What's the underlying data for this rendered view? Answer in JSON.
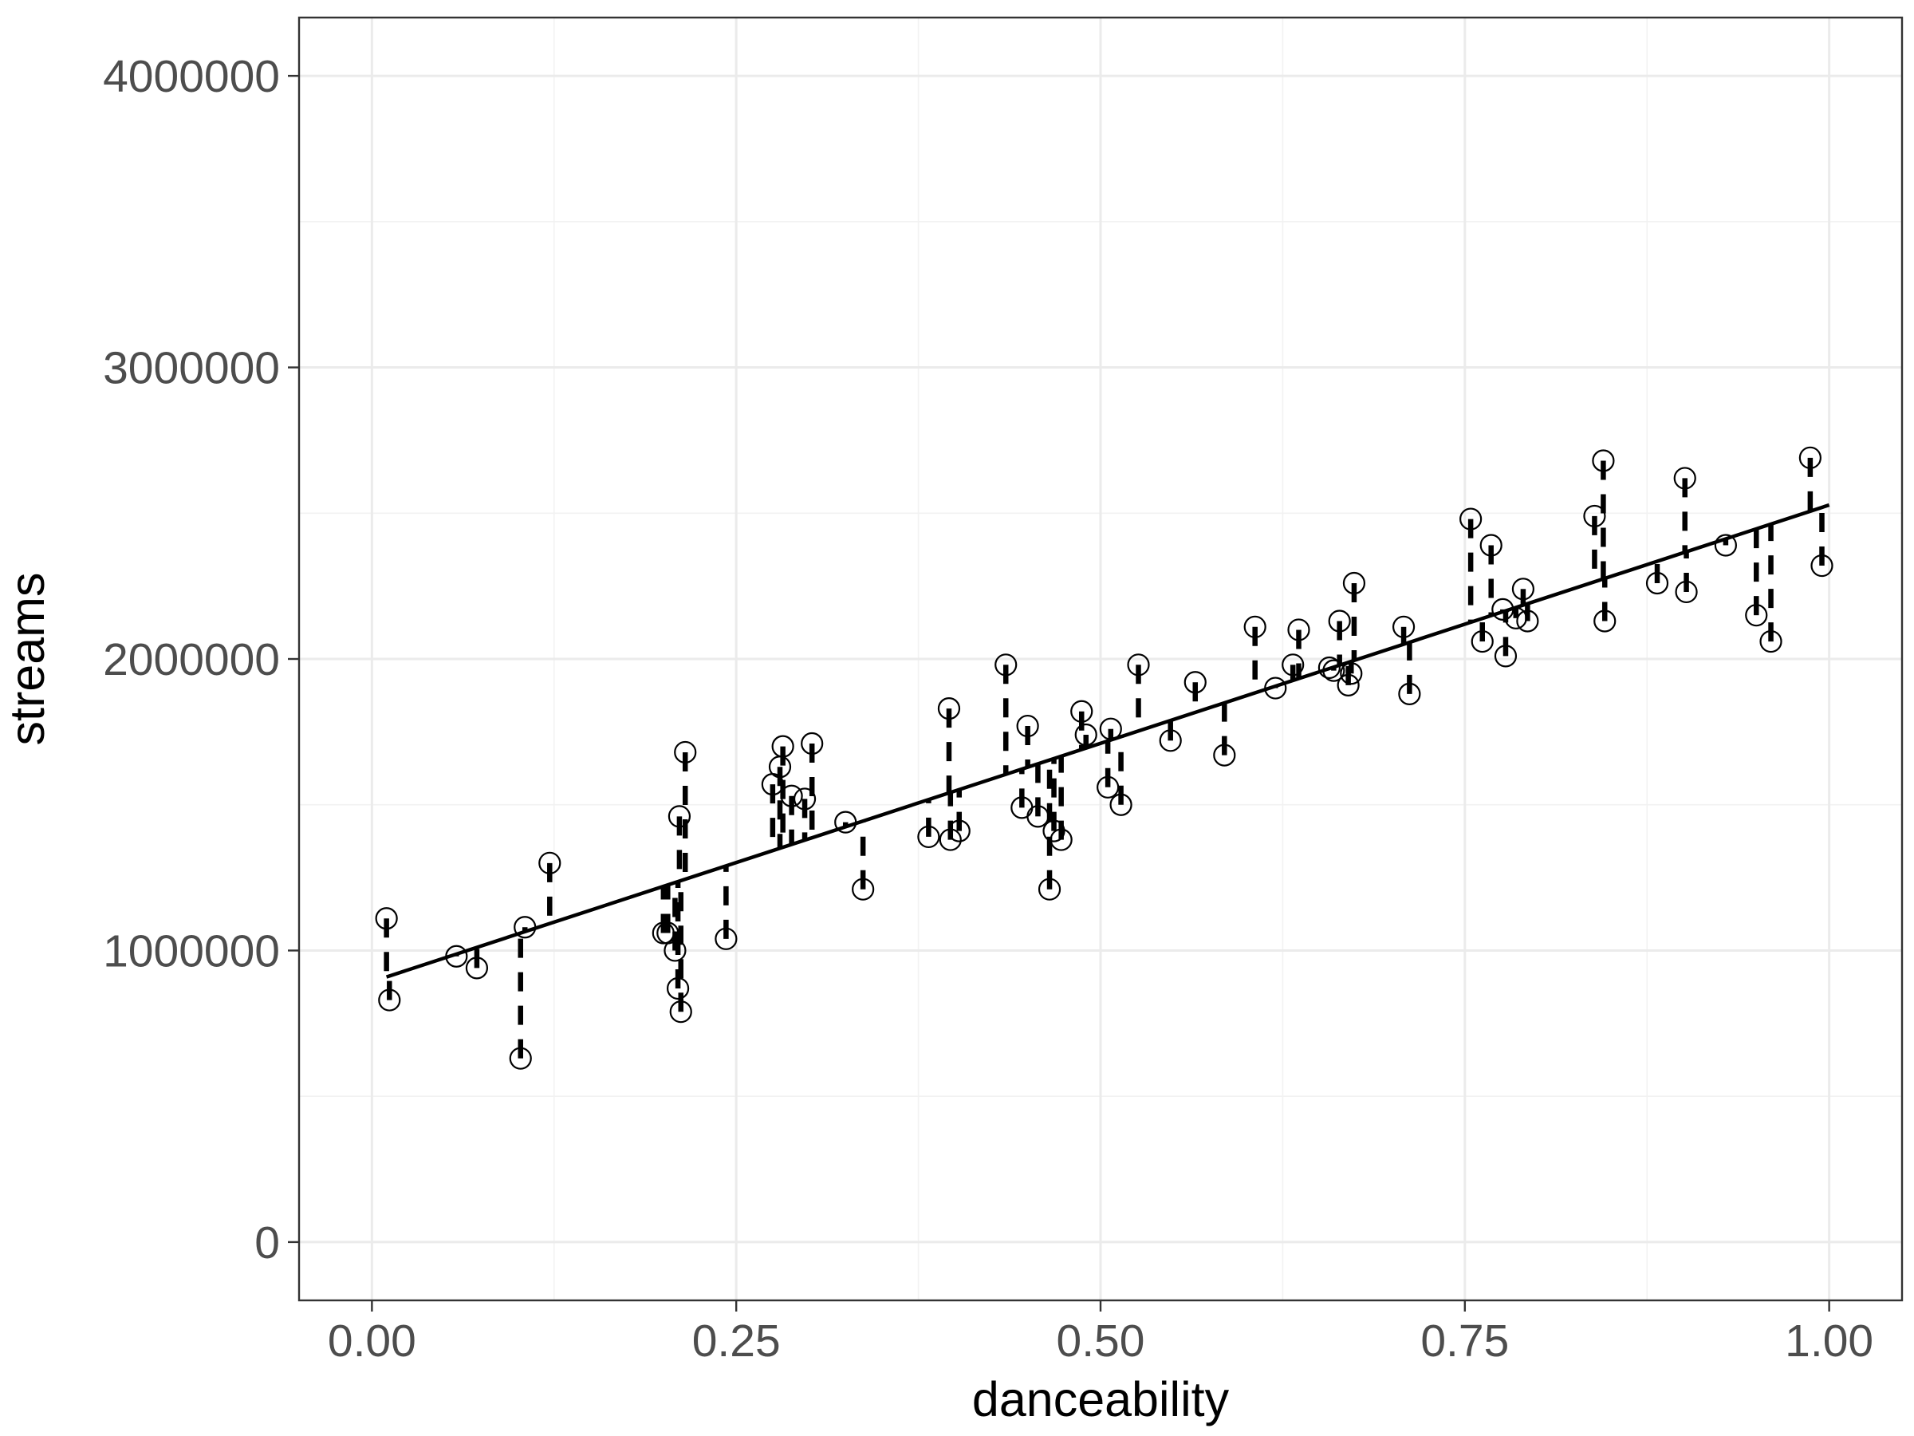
{
  "chart_data": {
    "type": "scatter",
    "title": "",
    "xlabel": "danceability",
    "ylabel": "streams",
    "xlim": [
      -0.05,
      1.05
    ],
    "ylim": [
      -200000,
      4200000
    ],
    "x_ticks": [
      0,
      0.25,
      0.5,
      0.75,
      1.0
    ],
    "x_tick_labels": [
      "0.00",
      "0.25",
      "0.50",
      "0.75",
      "1.00"
    ],
    "y_ticks": [
      0,
      1000000,
      2000000,
      3000000,
      4000000
    ],
    "y_tick_labels": [
      "0",
      "1000000",
      "2000000",
      "3000000",
      "4000000"
    ],
    "grid": true,
    "fit_line": {
      "intercept": 893000,
      "slope": 1635000,
      "x_range": [
        0.01,
        1.0
      ]
    },
    "residual_lines": "dashed",
    "points": [
      {
        "x": 0.01,
        "y": 1110000
      },
      {
        "x": 0.012,
        "y": 830000
      },
      {
        "x": 0.058,
        "y": 980000
      },
      {
        "x": 0.072,
        "y": 940000
      },
      {
        "x": 0.102,
        "y": 630000
      },
      {
        "x": 0.105,
        "y": 1080000
      },
      {
        "x": 0.122,
        "y": 1300000
      },
      {
        "x": 0.2,
        "y": 1060000
      },
      {
        "x": 0.203,
        "y": 1060000
      },
      {
        "x": 0.208,
        "y": 1000000
      },
      {
        "x": 0.21,
        "y": 870000
      },
      {
        "x": 0.211,
        "y": 1460000
      },
      {
        "x": 0.212,
        "y": 790000
      },
      {
        "x": 0.215,
        "y": 1680000
      },
      {
        "x": 0.243,
        "y": 1040000
      },
      {
        "x": 0.275,
        "y": 1570000
      },
      {
        "x": 0.28,
        "y": 1630000
      },
      {
        "x": 0.282,
        "y": 1700000
      },
      {
        "x": 0.288,
        "y": 1530000
      },
      {
        "x": 0.297,
        "y": 1520000
      },
      {
        "x": 0.302,
        "y": 1710000
      },
      {
        "x": 0.325,
        "y": 1440000
      },
      {
        "x": 0.337,
        "y": 1210000
      },
      {
        "x": 0.382,
        "y": 1390000
      },
      {
        "x": 0.396,
        "y": 1830000
      },
      {
        "x": 0.397,
        "y": 1380000
      },
      {
        "x": 0.403,
        "y": 1410000
      },
      {
        "x": 0.435,
        "y": 1980000
      },
      {
        "x": 0.446,
        "y": 1490000
      },
      {
        "x": 0.45,
        "y": 1770000
      },
      {
        "x": 0.457,
        "y": 1460000
      },
      {
        "x": 0.465,
        "y": 1210000
      },
      {
        "x": 0.468,
        "y": 1410000
      },
      {
        "x": 0.473,
        "y": 1380000
      },
      {
        "x": 0.487,
        "y": 1820000
      },
      {
        "x": 0.49,
        "y": 1740000
      },
      {
        "x": 0.505,
        "y": 1560000
      },
      {
        "x": 0.507,
        "y": 1760000
      },
      {
        "x": 0.514,
        "y": 1500000
      },
      {
        "x": 0.526,
        "y": 1980000
      },
      {
        "x": 0.548,
        "y": 1720000
      },
      {
        "x": 0.565,
        "y": 1920000
      },
      {
        "x": 0.585,
        "y": 1670000
      },
      {
        "x": 0.606,
        "y": 2110000
      },
      {
        "x": 0.62,
        "y": 1900000
      },
      {
        "x": 0.632,
        "y": 1980000
      },
      {
        "x": 0.636,
        "y": 2100000
      },
      {
        "x": 0.657,
        "y": 1970000
      },
      {
        "x": 0.66,
        "y": 1960000
      },
      {
        "x": 0.664,
        "y": 2130000
      },
      {
        "x": 0.67,
        "y": 1910000
      },
      {
        "x": 0.672,
        "y": 1950000
      },
      {
        "x": 0.674,
        "y": 2260000
      },
      {
        "x": 0.708,
        "y": 2110000
      },
      {
        "x": 0.712,
        "y": 1880000
      },
      {
        "x": 0.754,
        "y": 2480000
      },
      {
        "x": 0.762,
        "y": 2060000
      },
      {
        "x": 0.768,
        "y": 2390000
      },
      {
        "x": 0.776,
        "y": 2170000
      },
      {
        "x": 0.778,
        "y": 2010000
      },
      {
        "x": 0.785,
        "y": 2140000
      },
      {
        "x": 0.79,
        "y": 2240000
      },
      {
        "x": 0.793,
        "y": 2130000
      },
      {
        "x": 0.839,
        "y": 2490000
      },
      {
        "x": 0.845,
        "y": 2680000
      },
      {
        "x": 0.846,
        "y": 2130000
      },
      {
        "x": 0.882,
        "y": 2260000
      },
      {
        "x": 0.901,
        "y": 2620000
      },
      {
        "x": 0.902,
        "y": 2230000
      },
      {
        "x": 0.929,
        "y": 2390000
      },
      {
        "x": 0.95,
        "y": 2150000
      },
      {
        "x": 0.96,
        "y": 2060000
      },
      {
        "x": 0.987,
        "y": 2690000
      },
      {
        "x": 0.995,
        "y": 2320000
      }
    ]
  }
}
